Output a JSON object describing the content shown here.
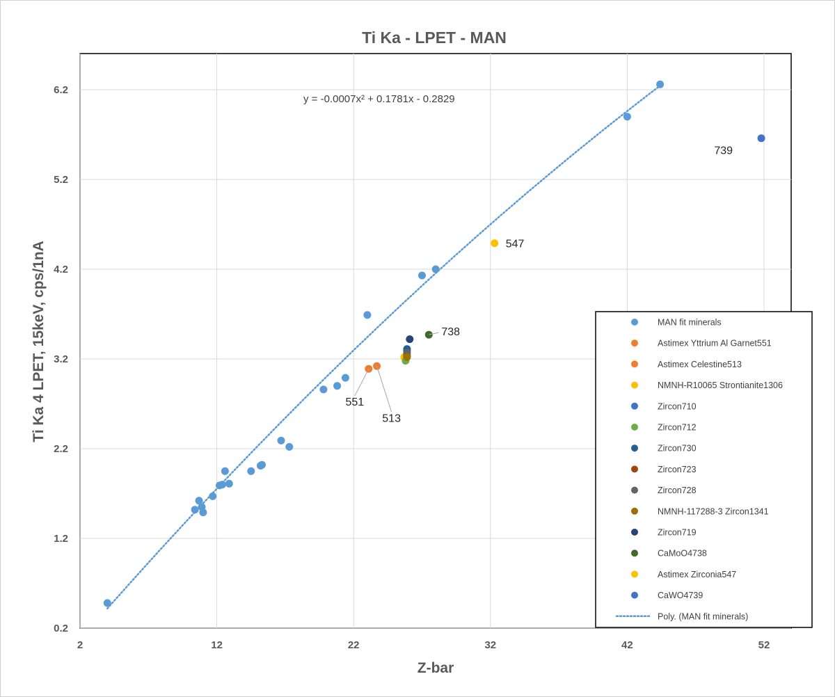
{
  "chart_data": {
    "type": "scatter",
    "title": "Ti Ka - LPET - MAN",
    "xlabel": "Z-bar",
    "ylabel": "Ti Ka 4 LPET,  15keV, cps/1nA",
    "xlim": [
      2,
      54
    ],
    "ylim": [
      0.2,
      6.9
    ],
    "xticks": [
      2,
      12,
      22,
      32,
      42,
      52
    ],
    "yticks": [
      0.2,
      1.2,
      2.2,
      3.2,
      4.2,
      5.2,
      6.2
    ],
    "grid": true,
    "trendline": {
      "name": "Poly. (MAN fit minerals)",
      "equation": "y = -0.0007x² + 0.1781x - 0.2829",
      "coefficients": [
        -0.0007,
        0.1781,
        -0.2829
      ],
      "x_range": [
        4,
        44.4
      ],
      "color": "#5b9bd5"
    },
    "series": [
      {
        "name": "MAN fit minerals",
        "color": "#5b9bd5",
        "points": [
          [
            4,
            0.48
          ],
          [
            10.4,
            1.52
          ],
          [
            10.7,
            1.62
          ],
          [
            10.9,
            1.55
          ],
          [
            11,
            1.49
          ],
          [
            11.7,
            1.67
          ],
          [
            12.2,
            1.79
          ],
          [
            12.4,
            1.8
          ],
          [
            12.6,
            1.95
          ],
          [
            12.9,
            1.81
          ],
          [
            14.5,
            1.95
          ],
          [
            15.2,
            2.01
          ],
          [
            15.3,
            2.02
          ],
          [
            16.7,
            2.29
          ],
          [
            17.3,
            2.22
          ],
          [
            19.8,
            2.86
          ],
          [
            20.8,
            2.9
          ],
          [
            21.4,
            2.99
          ],
          [
            23,
            3.69
          ],
          [
            27,
            4.13
          ],
          [
            28,
            4.2
          ],
          [
            42,
            5.9
          ],
          [
            44.4,
            6.26
          ]
        ]
      },
      {
        "name": "Astimex Yttrium Al Garnet551",
        "color": "#ed7d31",
        "points": [
          [
            23.1,
            3.09
          ]
        ]
      },
      {
        "name": "Astimex Celestine513",
        "color": "#ed7d31",
        "points": [
          [
            23.7,
            3.12
          ]
        ]
      },
      {
        "name": "NMNH-R10065 Strontianite1306",
        "color": "#ffc000",
        "points": [
          [
            25.7,
            3.22
          ]
        ]
      },
      {
        "name": "Zircon710",
        "color": "#4472c4",
        "points": [
          [
            25.9,
            3.29
          ]
        ]
      },
      {
        "name": "Zircon712",
        "color": "#70ad47",
        "points": [
          [
            25.8,
            3.18
          ]
        ]
      },
      {
        "name": "Zircon730",
        "color": "#255e91",
        "points": [
          [
            25.9,
            3.31
          ]
        ]
      },
      {
        "name": "Zircon723",
        "color": "#9e480e",
        "points": [
          [
            25.9,
            3.24
          ]
        ]
      },
      {
        "name": "Zircon728",
        "color": "#636363",
        "points": [
          [
            25.9,
            3.27
          ]
        ]
      },
      {
        "name": "NMNH-117288-3 Zircon1341",
        "color": "#997300",
        "points": [
          [
            25.9,
            3.22
          ]
        ]
      },
      {
        "name": "Zircon719",
        "color": "#264478",
        "points": [
          [
            26.1,
            3.42
          ]
        ]
      },
      {
        "name": "CaMoO4738",
        "color": "#43682b",
        "points": [
          [
            27.5,
            3.47
          ]
        ]
      },
      {
        "name": "Astimex Zirconia547",
        "color": "#ffc000",
        "points": [
          [
            32.3,
            4.49
          ]
        ]
      },
      {
        "name": "CaWO4739",
        "color": "#4472c4",
        "points": [
          [
            51.8,
            5.66
          ]
        ]
      }
    ],
    "annotations": [
      {
        "text": "547",
        "x": 32.3,
        "y": 4.49
      },
      {
        "text": "739",
        "x": 51.8,
        "y": 5.66
      },
      {
        "text": "738",
        "x": 27.5,
        "y": 3.47
      },
      {
        "text": "551",
        "x": 23.1,
        "y": 3.09
      },
      {
        "text": "513",
        "x": 23.7,
        "y": 3.12
      }
    ],
    "legend_position": "right"
  }
}
